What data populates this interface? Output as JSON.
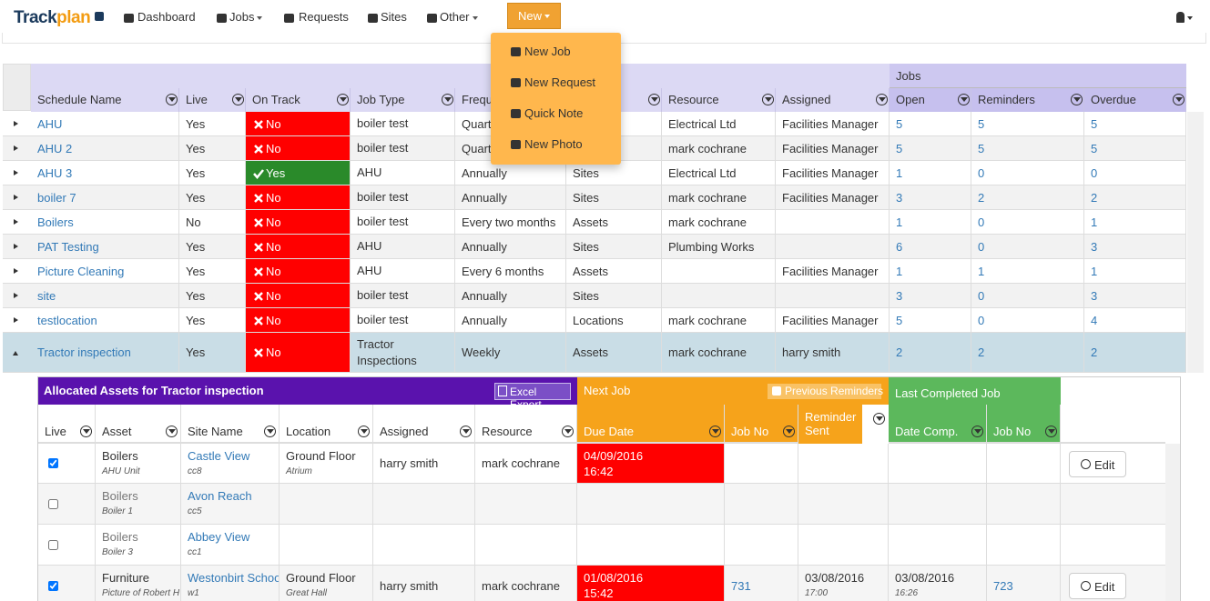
{
  "nav": {
    "brand_track": "Track",
    "brand_plan": "plan",
    "items": [
      "Dashboard",
      "Jobs",
      "Requests",
      "Sites",
      "Other"
    ],
    "new_button": "New"
  },
  "new_menu": [
    "New Job",
    "New Request",
    "Quick Note",
    "New Photo"
  ],
  "schedules": {
    "group_header": "Jobs",
    "columns": [
      "Schedule Name",
      "Live",
      "On Track",
      "Job Type",
      "Frequency",
      null,
      "Resource",
      "Assigned",
      "Open",
      "Reminders",
      "Overdue"
    ],
    "rows": [
      [
        "AHU",
        "Yes",
        "No",
        "boiler test",
        "Quarterly",
        null,
        "Electrical Ltd",
        "Facilities Manager",
        5,
        5,
        5
      ],
      [
        "AHU 2",
        "Yes",
        "No",
        "boiler test",
        "Quarterly",
        null,
        "mark cochrane",
        "Facilities Manager",
        5,
        5,
        5
      ],
      [
        "AHU 3",
        "Yes",
        "Yes",
        "AHU",
        "Annually",
        "Sites",
        "Electrical Ltd",
        "Facilities Manager",
        1,
        0,
        0
      ],
      [
        "boiler 7",
        "Yes",
        "No",
        "boiler test",
        "Annually",
        "Sites",
        "mark cochrane",
        "Facilities Manager",
        3,
        2,
        2
      ],
      [
        "Boilers",
        "No",
        "No",
        "boiler test",
        "Every two months",
        "Assets",
        "mark cochrane",
        null,
        1,
        0,
        1
      ],
      [
        "PAT Testing",
        "Yes",
        "No",
        "AHU",
        "Annually",
        "Sites",
        "Plumbing Works",
        null,
        6,
        0,
        3
      ],
      [
        "Picture Cleaning",
        "Yes",
        "No",
        "AHU",
        "Every 6 months",
        "Assets",
        null,
        "Facilities Manager",
        1,
        1,
        1
      ],
      [
        "site",
        "Yes",
        "No",
        "boiler test",
        "Annually",
        "Sites",
        null,
        null,
        3,
        0,
        3
      ],
      [
        "testlocation",
        "Yes",
        "No",
        "boiler test",
        "Annually",
        "Locations",
        "mark cochrane",
        "Facilities Manager",
        5,
        0,
        4
      ],
      [
        "Tractor inspection",
        "Yes",
        "No",
        "Tractor Inspections",
        "Weekly",
        "Assets",
        "mark cochrane",
        "harry smith",
        2,
        2,
        2
      ]
    ]
  },
  "assets": {
    "title": "Allocated Assets for Tractor inspection",
    "export": "Excel Export",
    "next_job": "Next Job",
    "previous_reminders": "Previous Reminders",
    "last_completed": "Last Completed Job",
    "columns": [
      "Live",
      "Asset",
      "Site Name",
      "Location",
      "Assigned",
      "Resource",
      "Due Date",
      "Job No",
      "Reminder Sent",
      "Date Comp.",
      "Job No"
    ],
    "rows": [
      {
        "live": true,
        "asset": "Boilers",
        "asset_sub": "AHU Unit",
        "site": "Castle View",
        "site_code": "cc8",
        "location": "Ground Floor",
        "location_sub": "Atrium",
        "assigned": "harry smith",
        "resource": "mark cochrane",
        "due_date": "04/09/2016",
        "due_time": "16:42",
        "job_no": null,
        "reminder_date": null,
        "reminder_time": null,
        "comp_date": null,
        "comp_time": null,
        "last_job_no": null,
        "edit": "Edit"
      },
      {
        "live": false,
        "asset": "Boilers",
        "asset_sub": "Boiler 1",
        "site": "Avon Reach",
        "site_code": "cc5",
        "location": null,
        "location_sub": null,
        "assigned": null,
        "resource": null,
        "due_date": null,
        "due_time": null,
        "job_no": null,
        "reminder_date": null,
        "reminder_time": null,
        "comp_date": null,
        "comp_time": null,
        "last_job_no": null,
        "edit": null
      },
      {
        "live": false,
        "asset": "Boilers",
        "asset_sub": "Boiler 3",
        "site": "Abbey View",
        "site_code": "cc1",
        "location": null,
        "location_sub": null,
        "assigned": null,
        "resource": null,
        "due_date": null,
        "due_time": null,
        "job_no": null,
        "reminder_date": null,
        "reminder_time": null,
        "comp_date": null,
        "comp_time": null,
        "last_job_no": null,
        "edit": null
      },
      {
        "live": true,
        "asset": "Furniture",
        "asset_sub": "Picture of Robert H",
        "site": "Westonbirt School",
        "site_code": "w1",
        "location": "Ground Floor",
        "location_sub": "Great Hall",
        "assigned": "harry smith",
        "resource": "mark cochrane",
        "due_date": "01/08/2016",
        "due_time": "15:42",
        "job_no": 731,
        "reminder_date": "03/08/2016",
        "reminder_time": "17:00",
        "comp_date": "03/08/2016",
        "comp_time": "16:26",
        "last_job_no": 723,
        "edit": "Edit"
      }
    ]
  }
}
